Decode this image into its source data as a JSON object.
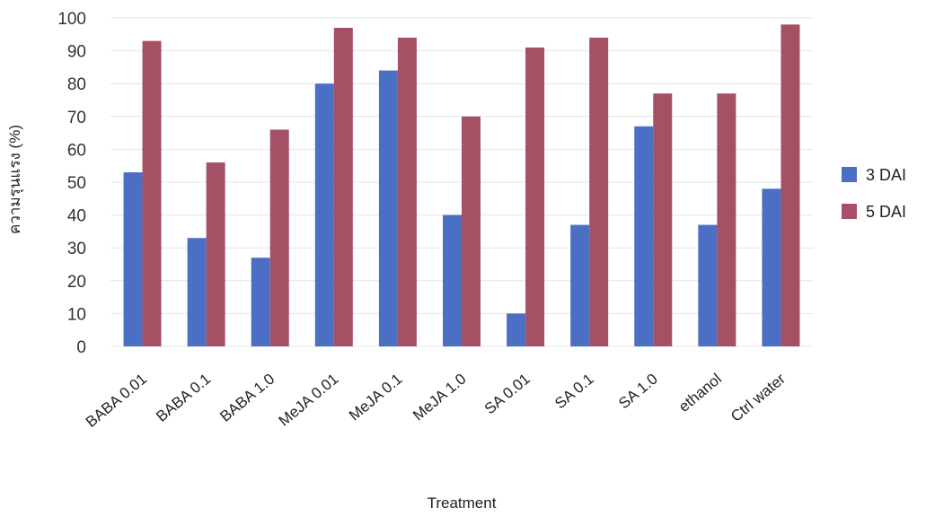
{
  "chart_data": {
    "type": "bar",
    "title": "",
    "xlabel": "Treatment",
    "ylabel": "ความรุนแรง (%)",
    "ylim": [
      0,
      100
    ],
    "yticks": [
      0,
      10,
      20,
      30,
      40,
      50,
      60,
      70,
      80,
      90,
      100
    ],
    "grid": true,
    "legend_position": "right",
    "categories": [
      "BABA 0.01",
      "BABA 0.1",
      "BABA 1.0",
      "MeJA 0.01",
      "MeJA 0.1",
      "MeJA 1.0",
      "SA 0.01",
      "SA 0.1",
      "SA 1.0",
      "ethanol",
      "Ctrl water"
    ],
    "series": [
      {
        "name": "3 DAI",
        "color": "#4a6fc4",
        "values": [
          53,
          33,
          27,
          80,
          84,
          40,
          10,
          37,
          67,
          37,
          48
        ]
      },
      {
        "name": "5 DAI",
        "color": "#a65065",
        "values": [
          93,
          56,
          66,
          97,
          94,
          70,
          91,
          94,
          77,
          77,
          98
        ]
      }
    ]
  }
}
